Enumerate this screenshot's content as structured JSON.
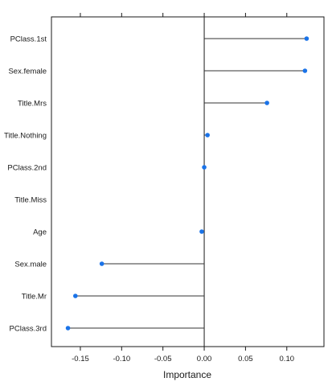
{
  "chart_data": {
    "type": "lollipop",
    "orientation": "horizontal",
    "xlabel": "Importance",
    "ylabel": "",
    "title": "",
    "xlim": [
      -0.185,
      0.145
    ],
    "xticks": [
      -0.15,
      -0.1,
      -0.05,
      0.0,
      0.05,
      0.1
    ],
    "xtick_labels": [
      "-0.15",
      "-0.10",
      "-0.05",
      "0.00",
      "0.05",
      "0.10"
    ],
    "reference_line": 0,
    "grid": false,
    "point_color": "#1a73e8",
    "line_color": "#333333",
    "categories": [
      "PClass.1st",
      "Sex.female",
      "Title.Mrs",
      "Title.Nothing",
      "PClass.2nd",
      "Title.Miss",
      "Age",
      "Sex.male",
      "Title.Mr",
      "PClass.3rd"
    ],
    "values": [
      0.124,
      0.122,
      0.076,
      0.004,
      0.0,
      null,
      -0.003,
      -0.124,
      -0.156,
      -0.165
    ]
  }
}
